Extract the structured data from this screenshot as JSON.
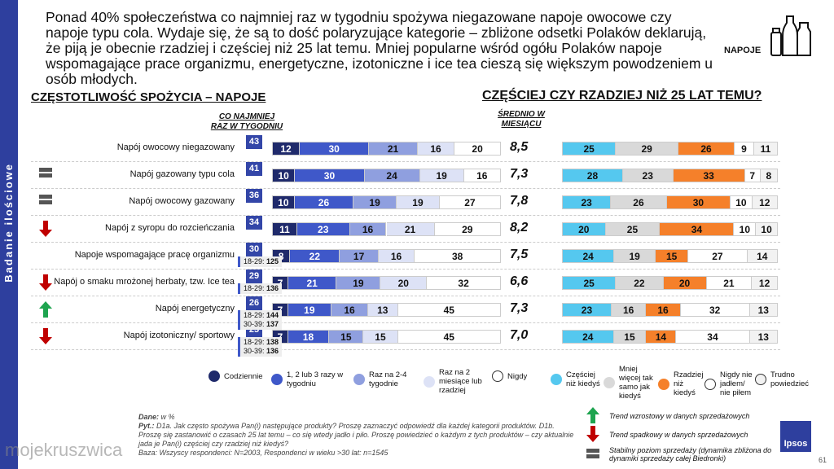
{
  "side_label": "Badanie ilościowe",
  "headline": "Ponad 40% społeczeństwa co najmniej raz w tygodniu spożywa niegazowane napoje owocowe czy napoje typu cola. Wydaje się, że są to dość polaryzujące kategorie – zbliżone odsetki Polaków deklarują, że piją je obecnie rzadziej i częściej niż 25 lat temu. Mniej popularne wśród ogółu Polaków napoje wspomagające prace organizmu, energetyczne, izotoniczne i ice tea cieszą się większym powodzeniem u osób młodych.",
  "category": "NAPOJE",
  "left_title": "CZĘSTOTLIWOŚĆ SPOŻYCIA – NAPOJE",
  "right_title": "CZĘŚCIEJ CZY RZADZIEJ NIŻ 25 LAT TEMU?",
  "sub_weekly": "CO NAJMNIEJ RAZ W TYGODNIU",
  "sub_avg": "ŚREDNIO W MIESIĄCU",
  "colors": {
    "freq": [
      "#1f2a6b",
      "#3f58c9",
      "#8f9fdf",
      "#dde2f6",
      "#ffffff"
    ],
    "change": [
      "#55c8ef",
      "#d9d9d9",
      "#f5802a",
      "#ffffff",
      "#f2f2f2"
    ]
  },
  "rows": [
    {
      "label": "Napój owocowy niegazowany",
      "trend": "",
      "weekly": "43",
      "age": [],
      "freq": [
        12,
        30,
        21,
        16,
        20
      ],
      "avg": "8,5",
      "change": [
        25,
        29,
        26,
        9,
        11
      ]
    },
    {
      "label": "Napój gazowany typu cola",
      "trend": "stable",
      "weekly": "41",
      "age": [],
      "freq": [
        10,
        30,
        24,
        19,
        16
      ],
      "avg": "7,3",
      "change": [
        28,
        23,
        33,
        7,
        8
      ]
    },
    {
      "label": "Napój owocowy gazowany",
      "trend": "stable",
      "weekly": "36",
      "age": [],
      "freq": [
        10,
        26,
        19,
        19,
        27
      ],
      "avg": "7,8",
      "change": [
        23,
        26,
        30,
        10,
        12
      ]
    },
    {
      "label": "Napój z syropu do rozcieńczania",
      "trend": "down",
      "weekly": "34",
      "age": [],
      "freq": [
        11,
        23,
        16,
        21,
        29
      ],
      "avg": "8,2",
      "change": [
        20,
        25,
        34,
        10,
        10
      ]
    },
    {
      "label": "Napoje wspomagające pracę organizmu",
      "trend": "",
      "weekly": "30",
      "age": [
        [
          "18-29:",
          "125"
        ]
      ],
      "freq": [
        8,
        22,
        17,
        16,
        38
      ],
      "avg": "7,5",
      "change": [
        24,
        19,
        15,
        27,
        14
      ]
    },
    {
      "label": "Napój o smaku mrożonej herbaty, tzw. Ice tea",
      "trend": "down",
      "weekly": "29",
      "age": [
        [
          "18-29:",
          "136"
        ]
      ],
      "freq": [
        7,
        21,
        19,
        20,
        32
      ],
      "avg": "6,6",
      "change": [
        25,
        22,
        20,
        21,
        12
      ]
    },
    {
      "label": "Napój energetyczny",
      "trend": "up",
      "weekly": "26",
      "age": [
        [
          "18-29:",
          "144"
        ],
        [
          "30-39:",
          "137"
        ]
      ],
      "freq": [
        7,
        19,
        16,
        13,
        45
      ],
      "avg": "7,3",
      "change": [
        23,
        16,
        16,
        32,
        13
      ]
    },
    {
      "label": "Napój izotoniczny/ sportowy",
      "trend": "down",
      "weekly": "25",
      "age": [
        [
          "18-29:",
          "138"
        ],
        [
          "30-39:",
          "136"
        ]
      ],
      "freq": [
        7,
        18,
        15,
        15,
        45
      ],
      "avg": "7,0",
      "change": [
        24,
        15,
        14,
        34,
        13
      ]
    }
  ],
  "legend_freq": [
    "Codziennie",
    "1, 2 lub 3 razy w tygodniu",
    "Raz na 2-4 tygodnie",
    "Raz na 2 miesiące lub rzadziej",
    "Nigdy"
  ],
  "legend_change": [
    "Częściej niż kiedyś",
    "Mniej więcej tak samo jak kiedyś",
    "Rzadziej niż kiedyś",
    "Nigdy nie jadłem/ nie piłem",
    "Trudno powiedzieć"
  ],
  "trend_legend": {
    "up": "Trend wzrostowy w danych sprzedażowych",
    "down": "Trend spadkowy w danych sprzedażowych",
    "stable": "Stabilny poziom sprzedaży (dynamika zbliżona do dynamiki sprzedaży całej Biedronki)"
  },
  "notes": {
    "data_label": "Dane:",
    "data": "w %",
    "q_label": "Pyt.:",
    "q": "D1a. Jak często spożywa Pan(i) następujące produkty? Proszę zaznaczyć odpowiedź dla każdej kategorii produktów. D1b. Proszę się zastanowić o czasach 25 lat temu – co się wtedy jadło i piło. Proszę powiedzieć o każdym z tych produktów – czy aktualnie jada je Pan(i) częściej czy rzadziej niż kiedyś?",
    "base": "Baza: Wszyscy respondenci: N=2003, Respondenci w wieku >30 lat: n=1545"
  },
  "brand": "Ipsos",
  "page": "61",
  "watermark": "mojekruszwica"
}
